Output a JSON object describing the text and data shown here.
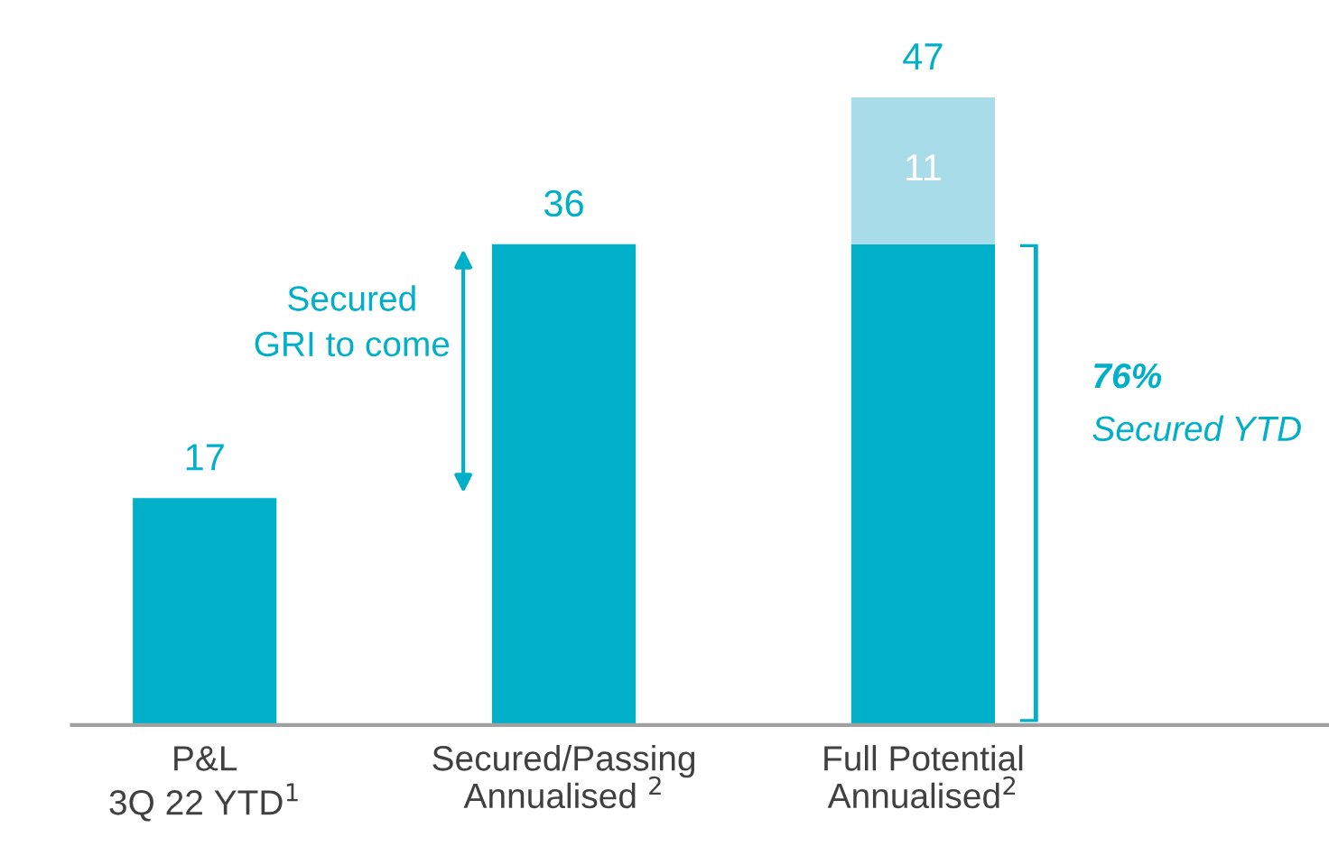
{
  "chart_data": {
    "type": "bar",
    "stacked": true,
    "categories": [
      "P&L\n3Q 22 YTD$^{1}$",
      "Secured/Passing\nAnnualised $^{2}$",
      "Full Potential\nAnnualised$^{2}$"
    ],
    "series": [
      {
        "color": "#00afc8",
        "values": [
          17,
          36,
          36
        ],
        "value_labels": [
          "17",
          "36",
          null
        ]
      },
      {
        "color": "#a8dce9",
        "values": [
          null,
          null,
          11
        ],
        "value_labels": [
          null,
          null,
          "11"
        ]
      }
    ],
    "totals": [
      null,
      null,
      "47"
    ],
    "annotations": [
      "Secured\nGRI to come",
      "76%",
      "Secured YTD"
    ],
    "grid": false,
    "legend": false,
    "tick_labels": "x"
  }
}
